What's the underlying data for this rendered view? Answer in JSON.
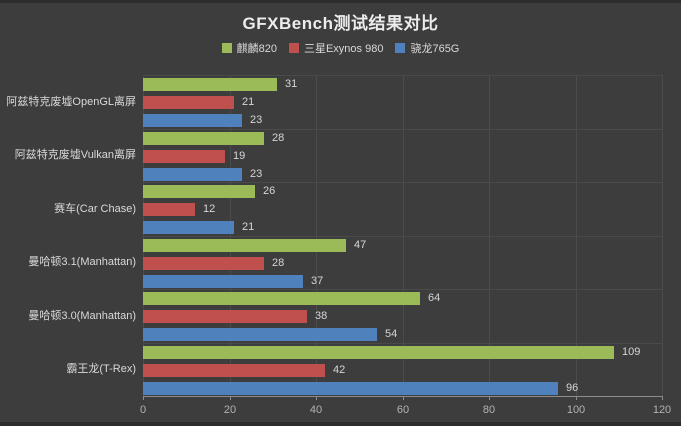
{
  "title": "GFXBench测试结果对比",
  "colors": {
    "background": "#3d3d3d",
    "gridline": "#4c4c4c",
    "axis_line": "#8c8c8c",
    "title_text": "#ececec",
    "label_text": "#d9d9d9",
    "tick_text": "#b3b3b3"
  },
  "chart_data": {
    "type": "bar",
    "orientation": "horizontal",
    "title": "GFXBench测试结果对比",
    "categories": [
      "阿兹特克废墟OpenGL离屏",
      "阿兹特克废墟Vulkan离屏",
      "赛车(Car Chase)",
      "曼哈顿3.1(Manhattan)",
      "曼哈顿3.0(Manhattan)",
      "霸王龙(T-Rex)"
    ],
    "series": [
      {
        "name": "麒麟820",
        "color": "#9bbb59",
        "values": [
          31,
          28,
          26,
          47,
          64,
          109
        ]
      },
      {
        "name": "三星Exynos 980",
        "color": "#c0504d",
        "values": [
          21,
          19,
          12,
          28,
          38,
          42
        ]
      },
      {
        "name": "骁龙765G",
        "color": "#4f81bd",
        "values": [
          23,
          23,
          21,
          37,
          54,
          96
        ]
      }
    ],
    "xlabel": "",
    "ylabel": "",
    "xlim": [
      0,
      120
    ],
    "xticks": [
      0,
      20,
      40,
      60,
      80,
      100,
      120
    ],
    "grid": true,
    "legend_position": "top",
    "value_labels": true
  }
}
